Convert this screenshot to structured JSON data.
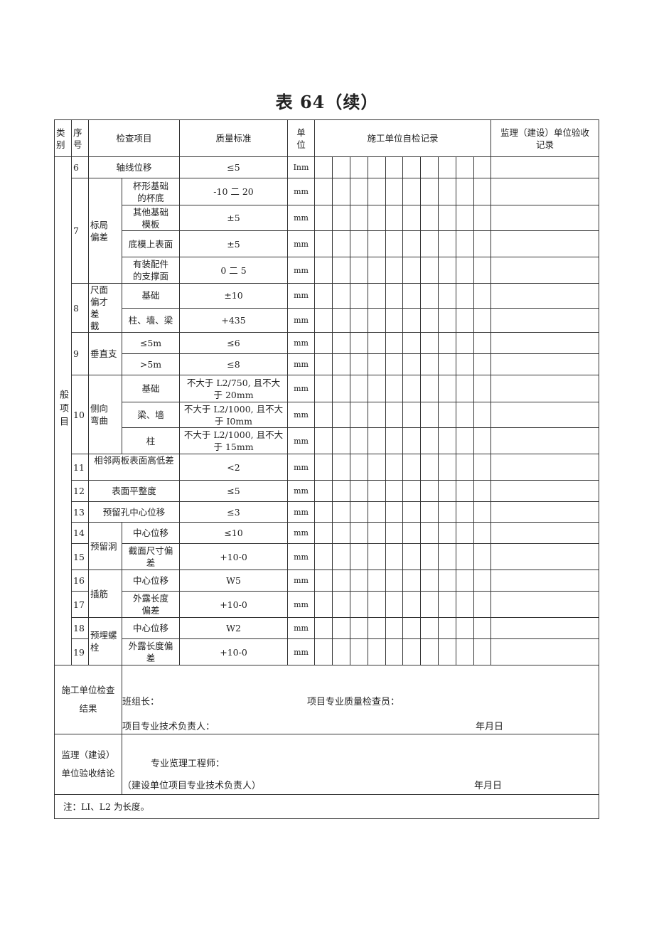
{
  "title": "表 64（续）",
  "header": {
    "category": "类\n别",
    "no": "序\n号",
    "item": "检查项目",
    "standard": "质量标准",
    "unit": "单\n位",
    "self_check": "施工单位自检记录",
    "supervision": "监理（建设）单位验收\n记录"
  },
  "category_label": "般项目",
  "check_columns": 10,
  "items": [
    {
      "no": "6",
      "name": "轴线位移",
      "standard": "≤5",
      "unit": "Inm"
    },
    {
      "no": "7",
      "group": "标局\n偏差",
      "subs": [
        {
          "name": "杯形基础\n的杯底",
          "standard": "-10 二 20",
          "unit": "mm"
        },
        {
          "name": "其他基础\n模板",
          "standard": "±5",
          "unit": "mm"
        },
        {
          "name": "底模上表面",
          "standard": "±5",
          "unit": "mm"
        },
        {
          "name": "有装配件\n的支撑面",
          "standard": "0 二 5",
          "unit": "mm"
        }
      ]
    },
    {
      "no": "8",
      "group": "尺面\n偏才\n差\n截",
      "subs": [
        {
          "name": "基础",
          "standard": "±10",
          "unit": "mm"
        },
        {
          "name": "柱、墙、梁",
          "standard": "+435",
          "unit": "mm"
        }
      ]
    },
    {
      "no": "9",
      "group": "垂直支",
      "subs": [
        {
          "name": "≤5m",
          "standard": "≤6",
          "unit": "mm"
        },
        {
          "name": ">5m",
          "standard": "≤8",
          "unit": "mm"
        }
      ]
    },
    {
      "no": "10",
      "group": "侧向\n弯曲",
      "subs": [
        {
          "name": "基础",
          "standard": "不大于 L2/750, 且不大\n于 20mm",
          "unit": "mm"
        },
        {
          "name": "梁、墙",
          "standard": "不大于 L2/1000, 且不大\n于 I0mm",
          "unit": "mm"
        },
        {
          "name": "柱",
          "standard": "不大于 L2/1000, 且不大\n于 15mm",
          "unit": "mm"
        }
      ]
    },
    {
      "no": "11",
      "name": "相邻两板表面高低差",
      "standard": "<2",
      "unit": "mm"
    },
    {
      "no": "12",
      "name": "表面平整度",
      "standard": "≤5",
      "unit": "mm"
    },
    {
      "no": "13",
      "name": "预留孔中心位移",
      "standard": "≤3",
      "unit": "mm"
    },
    {
      "group": "预留洞",
      "subs": [
        {
          "no": "14",
          "name": "中心位移",
          "standard": "≤10",
          "unit": "mm"
        },
        {
          "no": "15",
          "name": "截面尺寸偏\n差",
          "standard": "+10-0",
          "unit": "mm"
        }
      ]
    },
    {
      "group": "插筋",
      "subs": [
        {
          "no": "16",
          "name": "中心位移",
          "standard": "W5",
          "unit": "mm"
        },
        {
          "no": "17",
          "name": "外露长度\n偏差",
          "standard": "+10-0",
          "unit": "mm"
        }
      ]
    },
    {
      "group": "预埋螺\n栓",
      "subs": [
        {
          "no": "18",
          "name": "中心位移",
          "standard": "W2",
          "unit": "mm"
        },
        {
          "no": "19",
          "name": "外露长度偏\n差",
          "standard": "+10-0",
          "unit": "mm"
        }
      ]
    }
  ],
  "footer": {
    "contractor": {
      "label": "施工单位检查\n结果",
      "team_leader": "班组长：",
      "quality_inspector": "项目专业质量检查员：",
      "tech_lead": "项目专业技术负责人：",
      "date": "年月日"
    },
    "supervisor": {
      "label": "监理（建设）\n单位验收结论",
      "engineer": "专业览理工程师：",
      "owner_lead": "（建设单位项目专业技术负责人）",
      "date": "年月日"
    },
    "note": "注：LI、L2 为长度。"
  }
}
